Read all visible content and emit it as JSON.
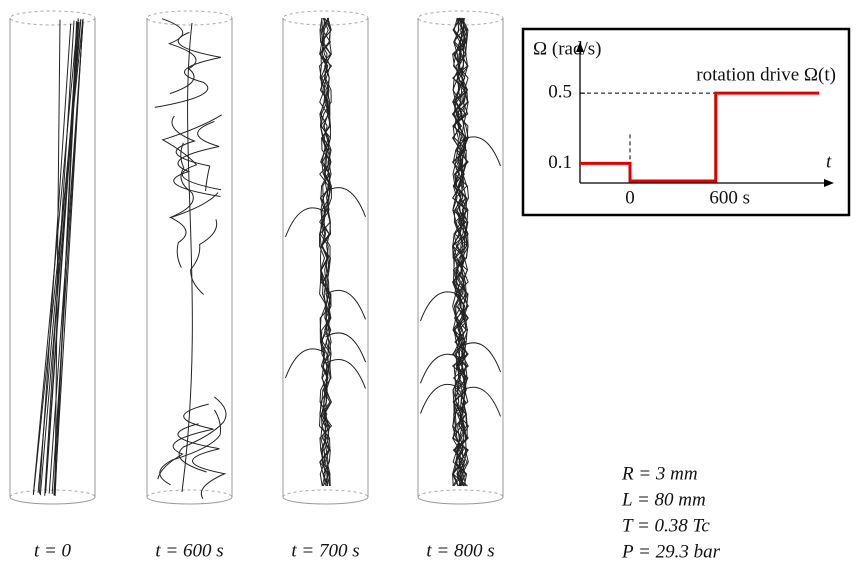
{
  "panels": [
    {
      "label": "t = 0"
    },
    {
      "label": "t = 600 s"
    },
    {
      "label": "t = 700 s"
    },
    {
      "label": "t = 800 s"
    }
  ],
  "parameters": [
    "R = 3 mm",
    "L = 80 mm",
    "T = 0.38 Tc",
    "P = 29.3 bar"
  ],
  "chart_data": {
    "type": "line",
    "title": "Ω  (rad/s)",
    "x_label": "t",
    "annotation": "rotation drive Ω(t)",
    "x": [
      -350,
      0,
      0,
      600,
      600,
      1325
    ],
    "values": [
      0.1,
      0.1,
      0,
      0,
      0.5,
      0.5
    ],
    "color": "#e00000",
    "xlim": [
      -350,
      1400
    ],
    "ylim": [
      0,
      0.78
    ],
    "xticks": [
      0,
      {
        "value": 600,
        "label": "600 s"
      }
    ],
    "yticks": [
      0.1,
      0.5
    ]
  }
}
